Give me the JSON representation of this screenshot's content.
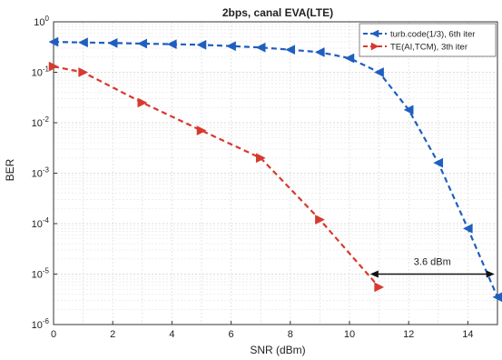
{
  "chart_data": {
    "type": "line",
    "title": "2bps, canal EVA(LTE)",
    "xlabel": "SNR (dBm)",
    "ylabel": "BER",
    "xlim": [
      0,
      15
    ],
    "ylim": [
      1e-06,
      1
    ],
    "yscale": "log",
    "grid": true,
    "legend_position": "top-right",
    "x_ticks": [
      0,
      2,
      4,
      6,
      8,
      10,
      12,
      14
    ],
    "y_ticks": [
      {
        "value": 1,
        "base": "10",
        "exp": "0"
      },
      {
        "value": 0.1,
        "base": "10",
        "exp": "-1"
      },
      {
        "value": 0.01,
        "base": "10",
        "exp": "-2"
      },
      {
        "value": 0.001,
        "base": "10",
        "exp": "-3"
      },
      {
        "value": 0.0001,
        "base": "10",
        "exp": "-4"
      },
      {
        "value": 1e-05,
        "base": "10",
        "exp": "-5"
      },
      {
        "value": 1e-06,
        "base": "10",
        "exp": "-6"
      }
    ],
    "series": [
      {
        "name": "turb.code(1/3), 6th iter",
        "color": "#1f5fbf",
        "marker": "triangle-left",
        "x": [
          0,
          1,
          2,
          3,
          4,
          5,
          6,
          7,
          8,
          9,
          10,
          11,
          12,
          13,
          14,
          15
        ],
        "y": [
          0.4,
          0.39,
          0.38,
          0.37,
          0.36,
          0.35,
          0.33,
          0.31,
          0.28,
          0.25,
          0.19,
          0.1,
          0.018,
          0.0016,
          8e-05,
          3.5e-06
        ]
      },
      {
        "name": "TE(AI,TCM), 3th iter",
        "color": "#d63a2e",
        "marker": "triangle-right",
        "x": [
          0,
          1,
          3,
          5,
          7,
          9,
          11
        ],
        "y": [
          0.13,
          0.1,
          0.025,
          0.007,
          0.002,
          0.00012,
          5.5e-06
        ]
      }
    ],
    "annotations": [
      {
        "text": "3.6 dBm",
        "x_start": 10.7,
        "x_end": 14.9,
        "y": 1e-05
      }
    ]
  }
}
